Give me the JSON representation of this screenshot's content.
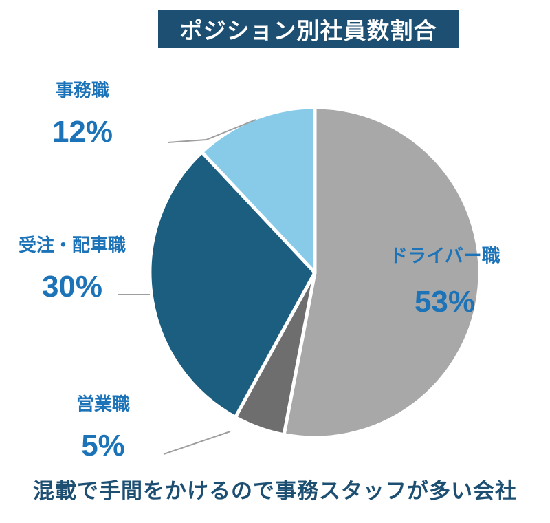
{
  "title": "ポジション別社員数割合",
  "footer": "混載で手間をかけるので事務スタッフが多い会社",
  "chart_data": {
    "type": "pie",
    "slices": [
      {
        "label": "ドライバー職",
        "value": 53,
        "value_text": "53%",
        "color": "#a8a8a8"
      },
      {
        "label": "営業職",
        "value": 5,
        "value_text": "5%",
        "color": "#6e6e6e"
      },
      {
        "label": "受注・配車職",
        "value": 30,
        "value_text": "30%",
        "color": "#1c5e80"
      },
      {
        "label": "事務職",
        "value": 12,
        "value_text": "12%",
        "color": "#87cbe9"
      }
    ],
    "start": "12 o'clock",
    "direction": "clockwise",
    "label_color": "#1c73b8",
    "leader_line_color": "#9e9e9e"
  }
}
